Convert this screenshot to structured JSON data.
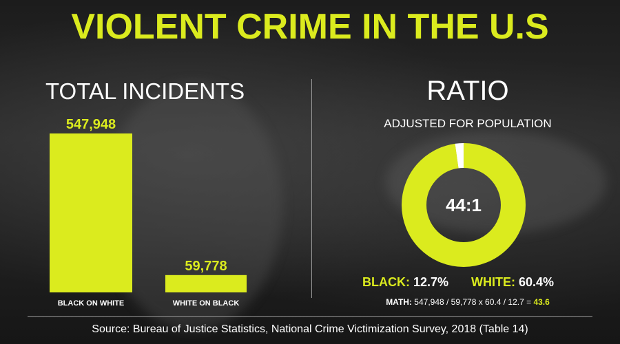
{
  "title": "VIOLENT CRIME IN THE U.S",
  "left_panel": {
    "heading": "TOTAL INCIDENTS"
  },
  "right_panel": {
    "heading": "RATIO",
    "subheading": "ADJUSTED FOR POPULATION",
    "legend": [
      {
        "label": "BLACK:",
        "value": "12.7%"
      },
      {
        "label": "WHITE:",
        "value": "60.4%"
      }
    ],
    "math": {
      "label": "MATH:",
      "expression": "547,948 / 59,778 x 60.4 / 12.7 =",
      "result": "43.6"
    }
  },
  "source": "Source: Bureau of Justice Statistics, National Crime Victimization Survey, 2018 (Table 14)",
  "colors": {
    "accent": "#dbeb1e",
    "text": "#ffffff",
    "background": "#1f1f1f"
  },
  "chart_data": [
    {
      "type": "bar",
      "categories": [
        "BLACK ON WHITE",
        "WHITE ON BLACK"
      ],
      "values": [
        547948,
        59778
      ],
      "value_labels": [
        "547,948",
        "59,778"
      ],
      "title": "TOTAL INCIDENTS",
      "xlabel": "",
      "ylabel": "",
      "ylim": [
        0,
        547948
      ],
      "grid": false
    },
    {
      "type": "pie",
      "style": "donut",
      "center_label": "44:1",
      "title": "RATIO",
      "subtitle": "ADJUSTED FOR POPULATION",
      "segments": [
        {
          "color": "#dbeb1e",
          "value": 43.6
        },
        {
          "color": "#ffffff",
          "value": 1
        }
      ]
    }
  ]
}
